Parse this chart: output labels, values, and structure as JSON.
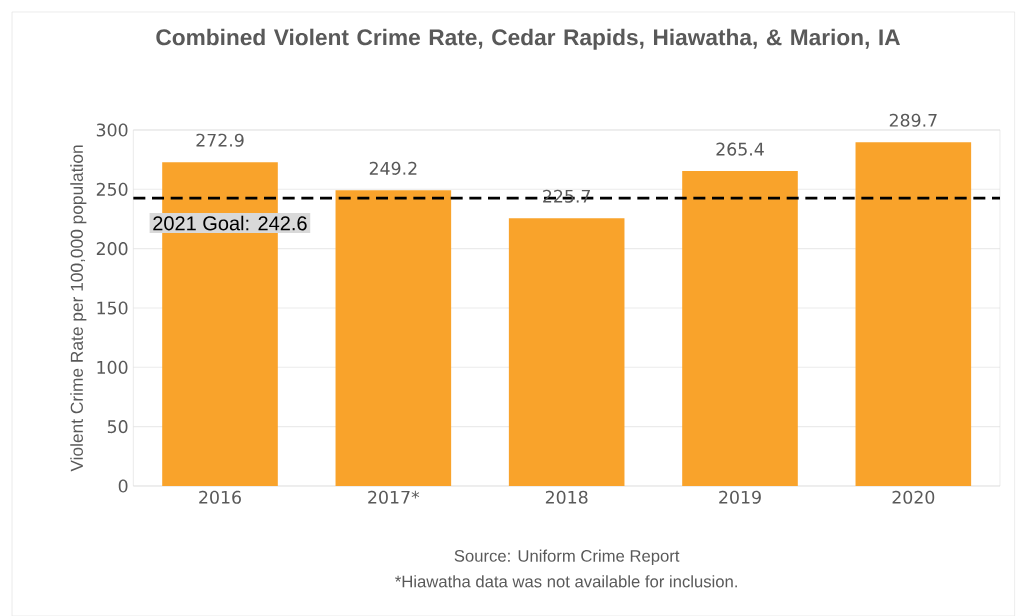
{
  "chart_data": {
    "type": "bar",
    "title": "Combined Violent Crime Rate, Cedar Rapids, Hiawatha, & Marion, IA",
    "ylabel": "Violent Crime Rate per 100,000 population",
    "categories": [
      "2016",
      "2017*",
      "2018",
      "2019",
      "2020"
    ],
    "values": [
      272.9,
      249.2,
      225.7,
      265.4,
      289.7
    ],
    "color": "#f9a32b",
    "data_labels": true,
    "ylim": [
      0,
      300
    ],
    "yticks": [
      0,
      50,
      100,
      150,
      200,
      250,
      300
    ],
    "grid": "y",
    "ref_lines": [
      {
        "axis": "y",
        "value": 242.6,
        "label": "2021 Goal: 242.6",
        "color": "#000000",
        "line_style": "dashed"
      }
    ],
    "annotations": [
      "Source: Uniform Crime Report",
      "*Hiawatha data was not available for inclusion."
    ]
  }
}
